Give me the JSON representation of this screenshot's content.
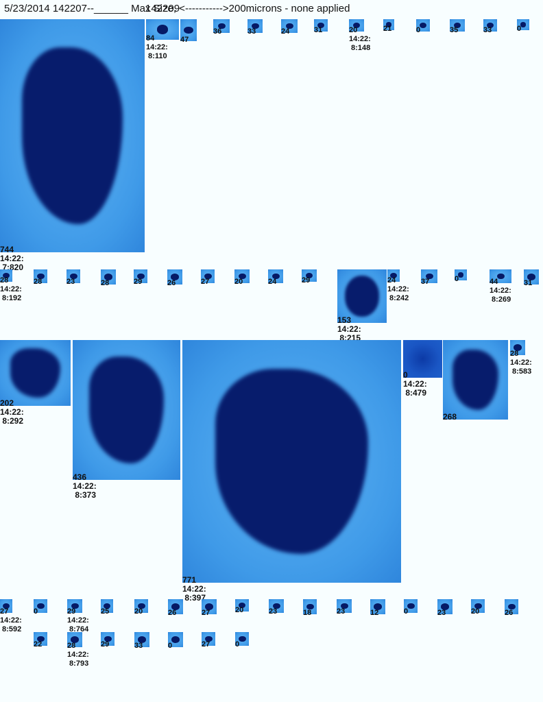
{
  "header": {
    "text": "5/23/2014 142207--______ Max Size, <----------->200microns - none applied",
    "overlay": "142209"
  },
  "panels": [
    {
      "value": "744",
      "time": "14:22:",
      "frame": "7:820"
    },
    {
      "value": "84",
      "time": "14:22:",
      "frame": "8:110"
    },
    {
      "value": "47"
    },
    {
      "value": "36"
    },
    {
      "value": "33"
    },
    {
      "value": "24"
    },
    {
      "value": "31"
    },
    {
      "value": "20",
      "time": "14:22:",
      "frame": "8:148"
    },
    {
      "value": "21"
    },
    {
      "value": "0"
    },
    {
      "value": "35"
    },
    {
      "value": "33"
    },
    {
      "value": "0"
    },
    {
      "value": "28",
      "time": "14:22:",
      "frame": "8:192"
    },
    {
      "value": "28"
    },
    {
      "value": "23"
    },
    {
      "value": "28"
    },
    {
      "value": "29"
    },
    {
      "value": "26"
    },
    {
      "value": "27"
    },
    {
      "value": "20"
    },
    {
      "value": "24"
    },
    {
      "value": "29"
    },
    {
      "value": "153",
      "time": "14:22:",
      "frame": "8:215"
    },
    {
      "value": "24",
      "time": "14:22:",
      "frame": "8:242"
    },
    {
      "value": "37"
    },
    {
      "value": "0"
    },
    {
      "value": "44",
      "time": "14:22:",
      "frame": "8:269"
    },
    {
      "value": "31"
    },
    {
      "value": "202",
      "time": "14:22:",
      "frame": "8:292"
    },
    {
      "value": "436",
      "time": "14:22:",
      "frame": "8:373"
    },
    {
      "value": "771",
      "time": "14:22:",
      "frame": "8:397"
    },
    {
      "value": "0",
      "time": "14:22:",
      "frame": "8:479"
    },
    {
      "value": "268"
    },
    {
      "value": "28",
      "time": "14:22:",
      "frame": "8:583"
    },
    {
      "value": "27",
      "time": "14:22:",
      "frame": "8:592"
    },
    {
      "value": "0"
    },
    {
      "value": "29",
      "time": "14:22:",
      "frame": "8:764"
    },
    {
      "value": "25"
    },
    {
      "value": "20"
    },
    {
      "value": "26"
    },
    {
      "value": "27"
    },
    {
      "value": "20"
    },
    {
      "value": "23"
    },
    {
      "value": "18"
    },
    {
      "value": "23"
    },
    {
      "value": "12"
    },
    {
      "value": "0"
    },
    {
      "value": "23"
    },
    {
      "value": "20"
    },
    {
      "value": "26"
    },
    {
      "value": "22"
    },
    {
      "value": "28",
      "time": "14:22:",
      "frame": "8:793"
    },
    {
      "value": "29"
    },
    {
      "value": "33"
    },
    {
      "value": "0"
    },
    {
      "value": "27"
    },
    {
      "value": "0"
    }
  ]
}
